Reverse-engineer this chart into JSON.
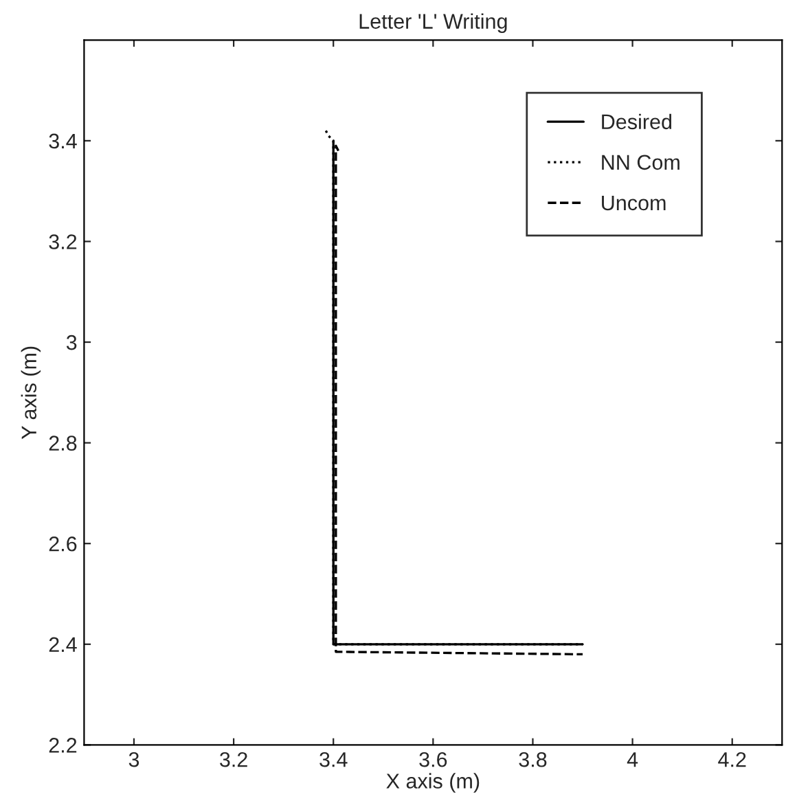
{
  "chart_data": {
    "type": "line",
    "title": "Letter 'L' Writing",
    "xlabel": "X axis (m)",
    "ylabel": "Y axis (m)",
    "xlim": [
      2.9,
      4.3
    ],
    "ylim": [
      2.2,
      3.6
    ],
    "xticks": [
      3,
      3.2,
      3.4,
      3.6,
      3.8,
      4,
      4.2
    ],
    "yticks": [
      2.2,
      2.4,
      2.6,
      2.8,
      3,
      3.2,
      3.4
    ],
    "grid": false,
    "legend": "top right",
    "series": [
      {
        "name": "Desired",
        "color": "#000000",
        "line_style": "solid",
        "x": [
          3.4,
          3.4,
          3.9
        ],
        "values": [
          3.4,
          2.4,
          2.4
        ]
      },
      {
        "name": "NN Com",
        "color": "#000000",
        "line_style": "dotted",
        "x": [
          3.385,
          3.39,
          3.4,
          3.4,
          3.9
        ],
        "values": [
          3.42,
          3.41,
          3.4,
          2.4,
          2.4
        ]
      },
      {
        "name": "Uncom",
        "color": "#000000",
        "line_style": "dashed",
        "x": [
          3.41,
          3.405,
          3.405,
          3.9
        ],
        "values": [
          3.38,
          3.39,
          2.385,
          2.38
        ]
      }
    ]
  }
}
